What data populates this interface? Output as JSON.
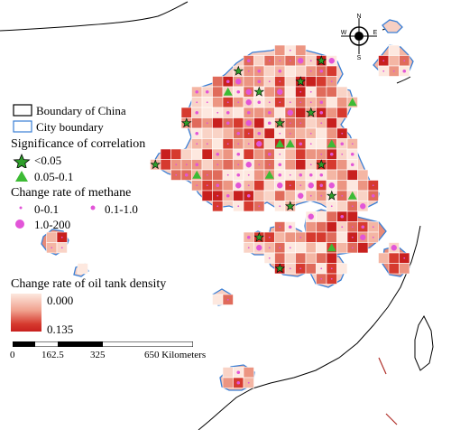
{
  "legend": {
    "boundary_china": "Boundary of China",
    "city_boundary": "City boundary",
    "significance_title": "Significance of correlation",
    "sig_low": "<0.05",
    "sig_mid": "0.05-0.1",
    "methane_title": "Change rate of methane",
    "methane_1": "0-0.1",
    "methane_2": "0.1-1.0",
    "methane_3": "1.0-200",
    "oil_title": "Change rate of oil tank density",
    "oil_min": "0.000",
    "oil_max": "0.135"
  },
  "scale": {
    "t0": "0",
    "t1": "162.5",
    "t2": "325",
    "t3": "650 Kilometers"
  },
  "compass": {
    "n": "N",
    "s": "S",
    "e": "E",
    "w": "W"
  },
  "colors": {
    "city_boundary": "#3a7fd5",
    "china_boundary": "#000000",
    "oil_low": "#fde8df",
    "oil_high": "#c8201e",
    "methane": "#e255d8",
    "sig_star": "#2e9e2a",
    "sig_triangle": "#3dbb35"
  }
}
